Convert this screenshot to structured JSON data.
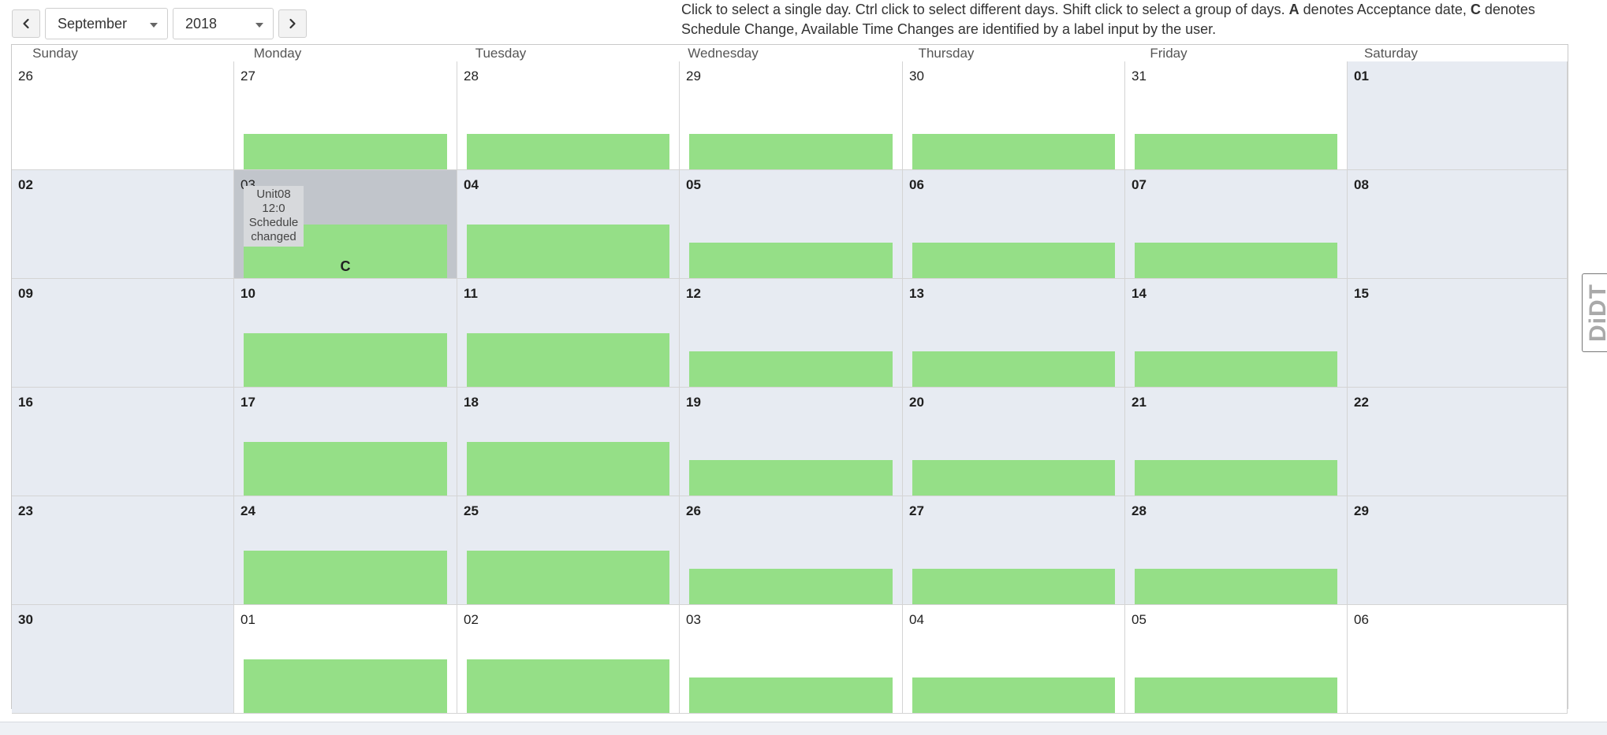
{
  "toolbar": {
    "prev_icon": "chevron-left-icon",
    "next_icon": "chevron-right-icon",
    "month": "September",
    "year": "2018"
  },
  "instructions": {
    "part1": "Click to select a single day. Ctrl click to select different days. Shift click to select a group of days. ",
    "a_key": "A",
    "part2": " denotes Acceptance date, ",
    "c_key": "C",
    "part3": " denotes Schedule Change, Available Time Changes are identified by a label input by the user."
  },
  "calendar": {
    "weekdays": [
      "Sunday",
      "Monday",
      "Tuesday",
      "Wednesday",
      "Thursday",
      "Friday",
      "Saturday"
    ],
    "weeks": [
      [
        {
          "day": "26",
          "current": false,
          "bar": 0
        },
        {
          "day": "27",
          "current": false,
          "bar": 45
        },
        {
          "day": "28",
          "current": false,
          "bar": 45
        },
        {
          "day": "29",
          "current": false,
          "bar": 45
        },
        {
          "day": "30",
          "current": false,
          "bar": 45
        },
        {
          "day": "31",
          "current": false,
          "bar": 45
        },
        {
          "day": "01",
          "current": true,
          "bar": 0
        }
      ],
      [
        {
          "day": "02",
          "current": true,
          "bar": 0
        },
        {
          "day": "03",
          "current": true,
          "bar": 68,
          "selected": true,
          "tooltip": [
            "Unit08",
            "12:0",
            "Schedule",
            "changed"
          ],
          "marker": "C"
        },
        {
          "day": "04",
          "current": true,
          "bar": 68
        },
        {
          "day": "05",
          "current": true,
          "bar": 45
        },
        {
          "day": "06",
          "current": true,
          "bar": 45
        },
        {
          "day": "07",
          "current": true,
          "bar": 45
        },
        {
          "day": "08",
          "current": true,
          "bar": 0
        }
      ],
      [
        {
          "day": "09",
          "current": true,
          "bar": 0
        },
        {
          "day": "10",
          "current": true,
          "bar": 68
        },
        {
          "day": "11",
          "current": true,
          "bar": 68
        },
        {
          "day": "12",
          "current": true,
          "bar": 45
        },
        {
          "day": "13",
          "current": true,
          "bar": 45
        },
        {
          "day": "14",
          "current": true,
          "bar": 45
        },
        {
          "day": "15",
          "current": true,
          "bar": 0
        }
      ],
      [
        {
          "day": "16",
          "current": true,
          "bar": 0
        },
        {
          "day": "17",
          "current": true,
          "bar": 68
        },
        {
          "day": "18",
          "current": true,
          "bar": 68
        },
        {
          "day": "19",
          "current": true,
          "bar": 45
        },
        {
          "day": "20",
          "current": true,
          "bar": 45
        },
        {
          "day": "21",
          "current": true,
          "bar": 45
        },
        {
          "day": "22",
          "current": true,
          "bar": 0
        }
      ],
      [
        {
          "day": "23",
          "current": true,
          "bar": 0
        },
        {
          "day": "24",
          "current": true,
          "bar": 68
        },
        {
          "day": "25",
          "current": true,
          "bar": 68
        },
        {
          "day": "26",
          "current": true,
          "bar": 45
        },
        {
          "day": "27",
          "current": true,
          "bar": 45
        },
        {
          "day": "28",
          "current": true,
          "bar": 45
        },
        {
          "day": "29",
          "current": true,
          "bar": 0
        }
      ],
      [
        {
          "day": "30",
          "current": true,
          "bar": 0
        },
        {
          "day": "01",
          "current": false,
          "bar": 68
        },
        {
          "day": "02",
          "current": false,
          "bar": 68
        },
        {
          "day": "03",
          "current": false,
          "bar": 45
        },
        {
          "day": "04",
          "current": false,
          "bar": 45
        },
        {
          "day": "05",
          "current": false,
          "bar": 45
        },
        {
          "day": "06",
          "current": false,
          "bar": 0
        }
      ]
    ]
  },
  "side_tab": {
    "label": "DiDT"
  },
  "colors": {
    "bar": "#95df87",
    "current_month_bg": "#e7ebf2",
    "selected_bg": "#c1c5cb"
  }
}
